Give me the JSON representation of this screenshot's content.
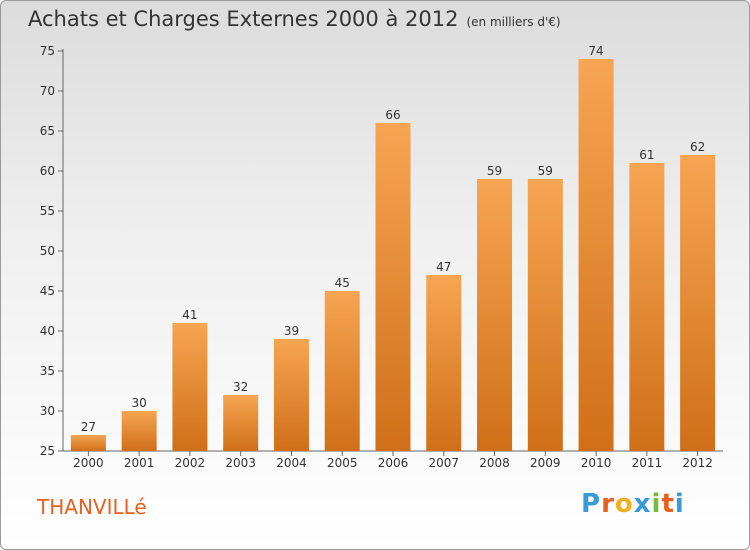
{
  "title": "Achats et Charges Externes 2000 à 2012",
  "subtitle": "(en milliers d'€)",
  "commune": "THANVILLé",
  "logo": {
    "letters": [
      "P",
      "r",
      "o",
      "x",
      "i",
      "t",
      "i"
    ],
    "colors": [
      "#3a9ad9",
      "#e8601e",
      "#f2b01e",
      "#3a9ad9",
      "#7ab93a",
      "#e8601e",
      "#3a9ad9"
    ]
  },
  "colors": {
    "bar_light": "#f6a552",
    "bar_dark": "#d06f18",
    "title": "#333333",
    "commune": "#e8601e"
  },
  "chart_data": {
    "type": "bar",
    "categories": [
      "2000",
      "2001",
      "2002",
      "2003",
      "2004",
      "2005",
      "2006",
      "2007",
      "2008",
      "2009",
      "2010",
      "2011",
      "2012"
    ],
    "values": [
      27,
      30,
      41,
      32,
      39,
      45,
      66,
      47,
      59,
      59,
      74,
      61,
      62
    ],
    "title": "Achats et Charges Externes 2000 à 2012",
    "xlabel": "",
    "ylabel": "",
    "ylim": [
      25,
      75
    ],
    "yticks": [
      25,
      30,
      35,
      40,
      45,
      50,
      55,
      60,
      65,
      70,
      75
    ],
    "grid": false,
    "data_labels": true
  }
}
